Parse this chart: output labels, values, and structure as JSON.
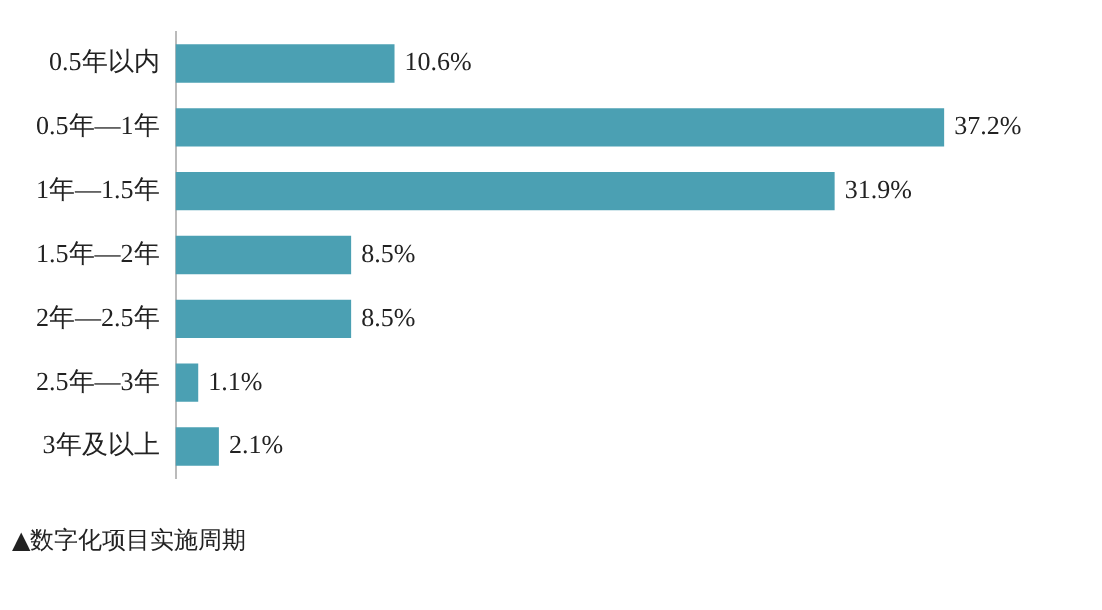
{
  "chart_data": {
    "type": "bar",
    "orientation": "horizontal",
    "categories": [
      "0.5年以内",
      "0.5年—1年",
      "1年—1.5年",
      "1.5年—2年",
      "2年—2.5年",
      "2.5年—3年",
      "3年及以上"
    ],
    "values": [
      10.6,
      37.2,
      31.9,
      8.5,
      8.5,
      1.1,
      2.1
    ],
    "value_labels": [
      "10.6%",
      "37.2%",
      "31.9%",
      "8.5%",
      "8.5%",
      "1.1%",
      "2.1%"
    ],
    "color": "#4ba0b3",
    "grid": false,
    "legend": false,
    "annotations": [
      "▲数字化项目实施周期"
    ]
  }
}
